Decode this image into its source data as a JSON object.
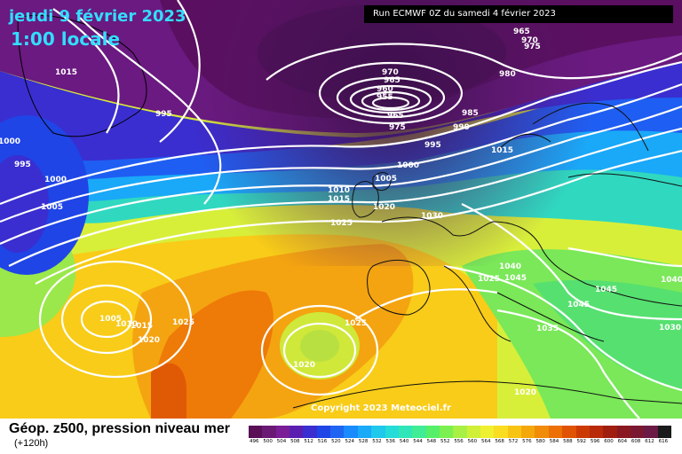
{
  "header": {
    "date": "jeudi 9 février 2023",
    "time": "1:00 locale",
    "run": "Run ECMWF 0Z du samedi 4 février 2023"
  },
  "copyright": "Copyright 2023 Meteociel.fr",
  "footer": {
    "caption": "Géop. z500, pression niveau mer",
    "lead": "(+120h)"
  },
  "scale": {
    "values": [
      "496",
      "500",
      "504",
      "508",
      "512",
      "516",
      "520",
      "524",
      "528",
      "532",
      "536",
      "540",
      "544",
      "548",
      "552",
      "556",
      "560",
      "564",
      "568",
      "572",
      "576",
      "580",
      "584",
      "588",
      "592",
      "596",
      "600",
      "604",
      "608",
      "612",
      "616"
    ],
    "colors": [
      "#5a0f56",
      "#6a1a74",
      "#7a1d96",
      "#5a1fb0",
      "#3a2ed0",
      "#1f45e6",
      "#1f65f2",
      "#1a8aff",
      "#1aaaf8",
      "#20c8ec",
      "#25dcd8",
      "#30e6b8",
      "#40ec94",
      "#56ef6a",
      "#7cf050",
      "#a8f044",
      "#d0f038",
      "#eef030",
      "#fadc20",
      "#f8c414",
      "#f4a80c",
      "#f08c08",
      "#ec7006",
      "#e05204",
      "#cc3a04",
      "#b82a08",
      "#a01e10",
      "#8a1820",
      "#7a1832",
      "#6a1a44",
      "#1a1a1a"
    ]
  },
  "isobar_labels": [
    {
      "text": "1015"
    },
    {
      "text": "995"
    },
    {
      "text": "1000"
    },
    {
      "text": "995"
    },
    {
      "text": "1000"
    },
    {
      "text": "1005"
    },
    {
      "text": "970"
    },
    {
      "text": "965"
    },
    {
      "text": "960"
    },
    {
      "text": "955"
    },
    {
      "text": "965"
    },
    {
      "text": "975"
    },
    {
      "text": "965"
    },
    {
      "text": "970"
    },
    {
      "text": "975"
    },
    {
      "text": "980"
    },
    {
      "text": "985"
    },
    {
      "text": "990"
    },
    {
      "text": "995"
    },
    {
      "text": "1000"
    },
    {
      "text": "1005"
    },
    {
      "text": "1010"
    },
    {
      "text": "1015"
    },
    {
      "text": "1015"
    },
    {
      "text": "1020"
    },
    {
      "text": "1025"
    },
    {
      "text": "1030"
    },
    {
      "text": "1040"
    },
    {
      "text": "1025"
    },
    {
      "text": "1045"
    },
    {
      "text": "1045"
    },
    {
      "text": "1045"
    },
    {
      "text": "1035"
    },
    {
      "text": "1030"
    },
    {
      "text": "1040"
    },
    {
      "text": "1005"
    },
    {
      "text": "1010"
    },
    {
      "text": "1015"
    },
    {
      "text": "1020"
    },
    {
      "text": "1025"
    },
    {
      "text": "1025"
    },
    {
      "text": "1020"
    },
    {
      "text": "1020"
    }
  ]
}
